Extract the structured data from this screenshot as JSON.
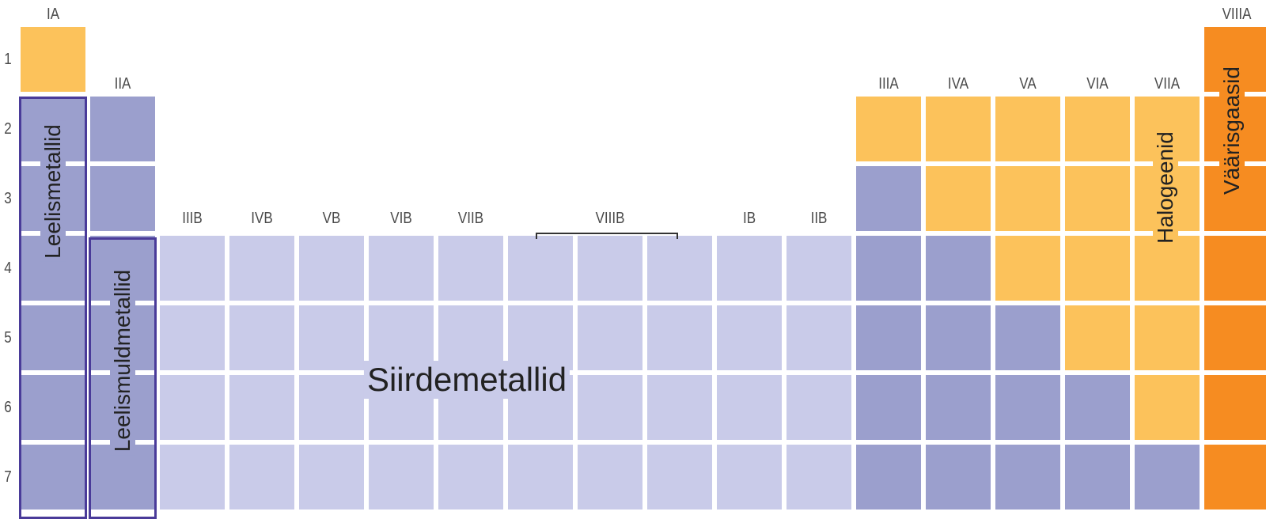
{
  "group_labels": [
    "IA",
    "IIA",
    "IIIB",
    "IVB",
    "VB",
    "VIB",
    "VIIB",
    "VIIIB",
    "IB",
    "IIB",
    "IIIA",
    "IVA",
    "VA",
    "VIA",
    "VIIA",
    "VIIIA"
  ],
  "period_labels": [
    "1",
    "2",
    "3",
    "4",
    "5",
    "6",
    "7"
  ],
  "category_labels": {
    "alkali_metals": "Leelismetallid",
    "alkaline_earth_metals": "Leelismuldmetallid",
    "transition_metals": "Siirdemetallid",
    "halogens": "Halogeenid",
    "noble_gases": "Väärisgaasid"
  },
  "colors": {
    "metal": "#9b9fcd",
    "transition_metal": "#c9cbe9",
    "nonmetal": "#fcc25b",
    "noble_gas": "#f68c21",
    "highlight_border": "#4a3b99"
  }
}
